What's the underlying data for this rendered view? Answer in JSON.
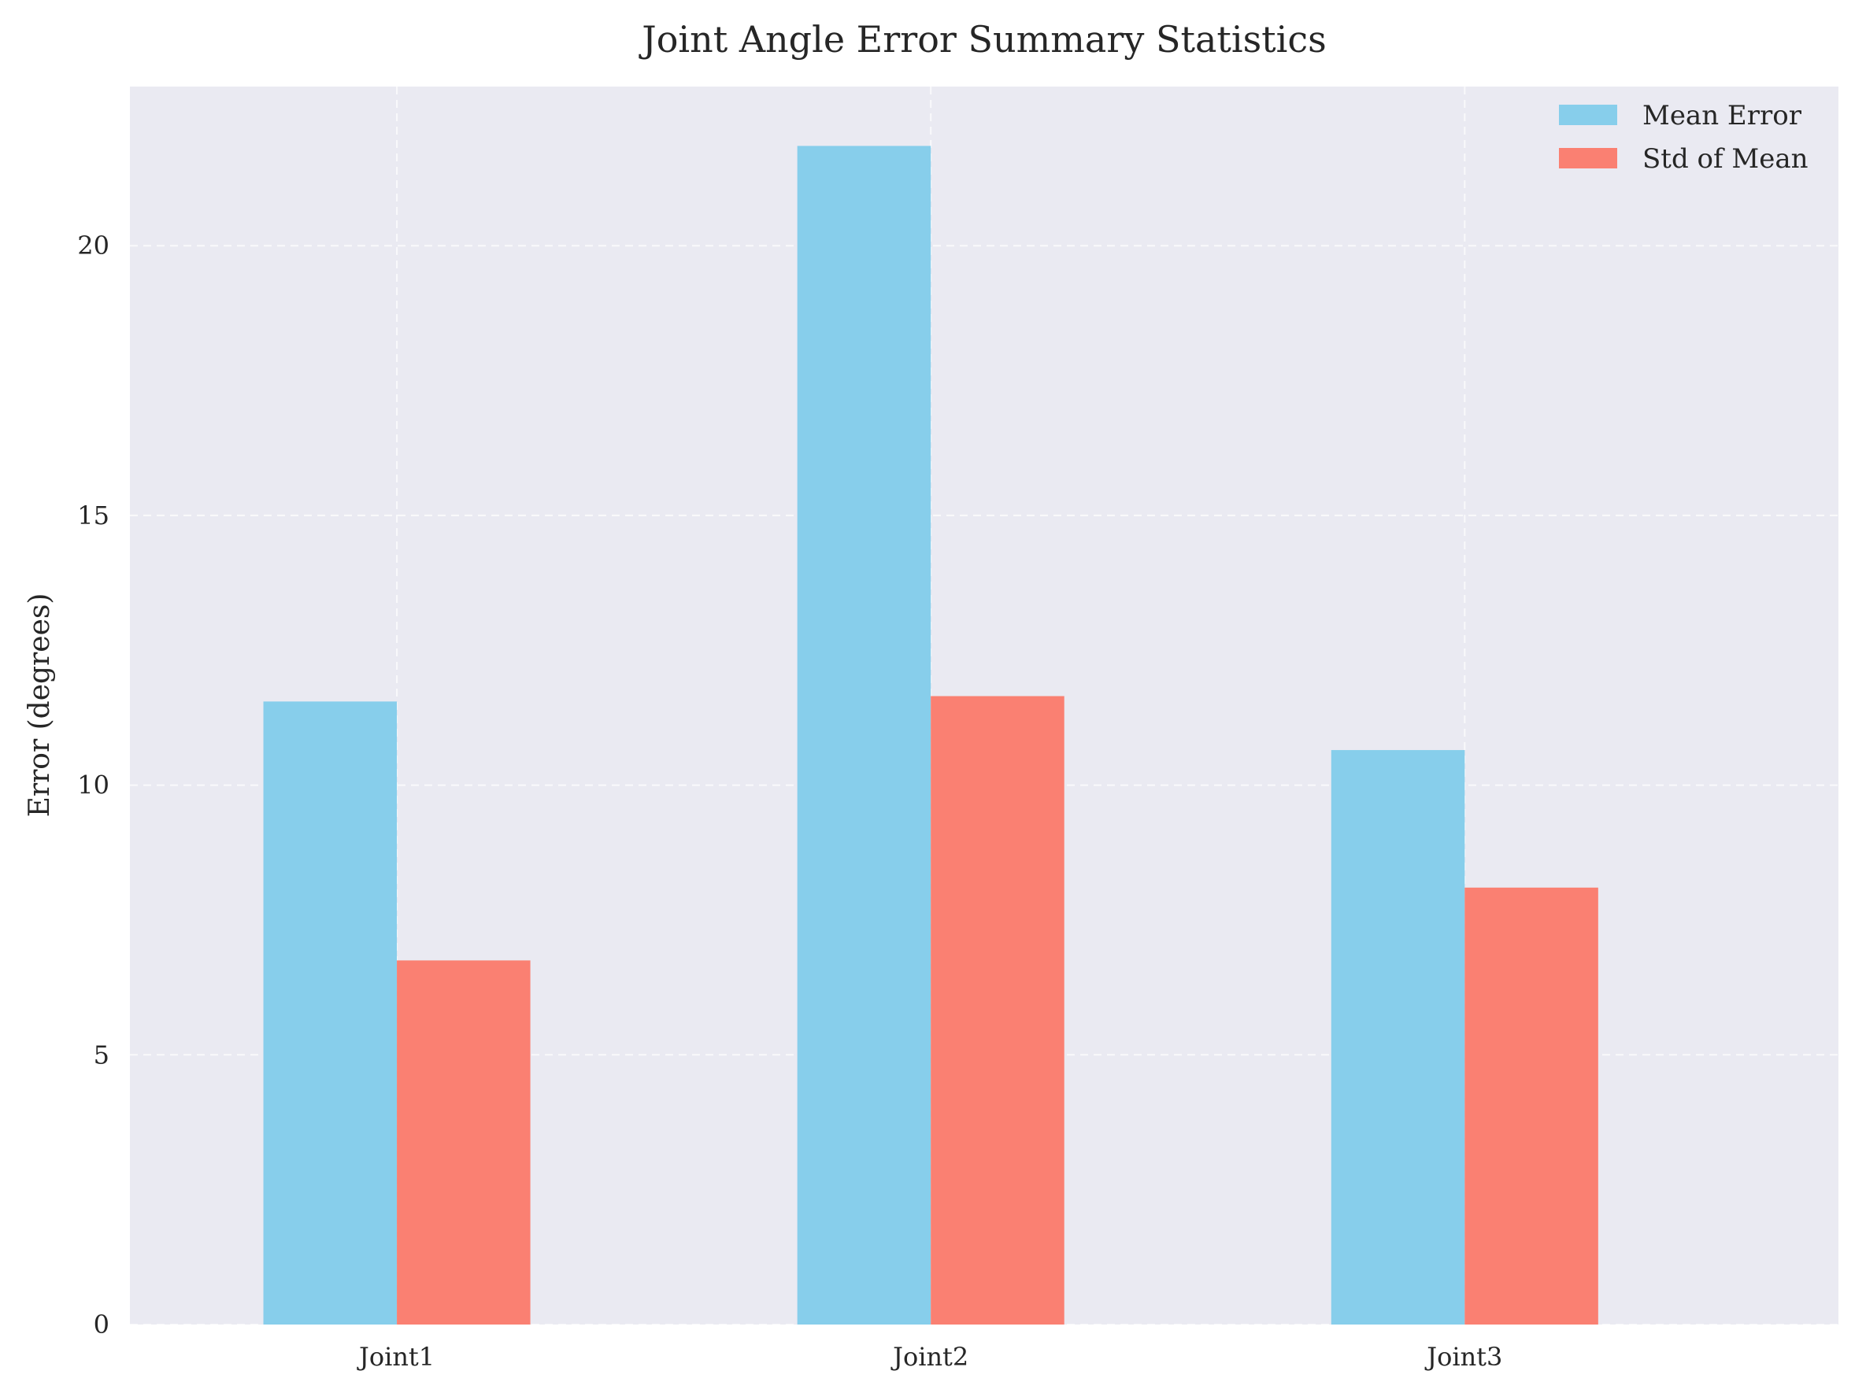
{
  "chart_data": {
    "type": "bar",
    "title": "Joint Angle Error Summary Statistics",
    "xlabel": "",
    "ylabel": "Error (degrees)",
    "categories": [
      "Joint1",
      "Joint2",
      "Joint3"
    ],
    "series": [
      {
        "name": "Mean Error",
        "values": [
          11.55,
          21.85,
          10.65
        ],
        "color": "#87CEEB"
      },
      {
        "name": "Std of Mean",
        "values": [
          6.75,
          11.65,
          8.1
        ],
        "color": "#FA8072"
      }
    ],
    "ylim": [
      0,
      22.95
    ],
    "yticks": [
      0,
      5,
      10,
      15,
      20
    ],
    "grid": true,
    "legend": "top-right",
    "plot_background": "#EAEAF2"
  }
}
